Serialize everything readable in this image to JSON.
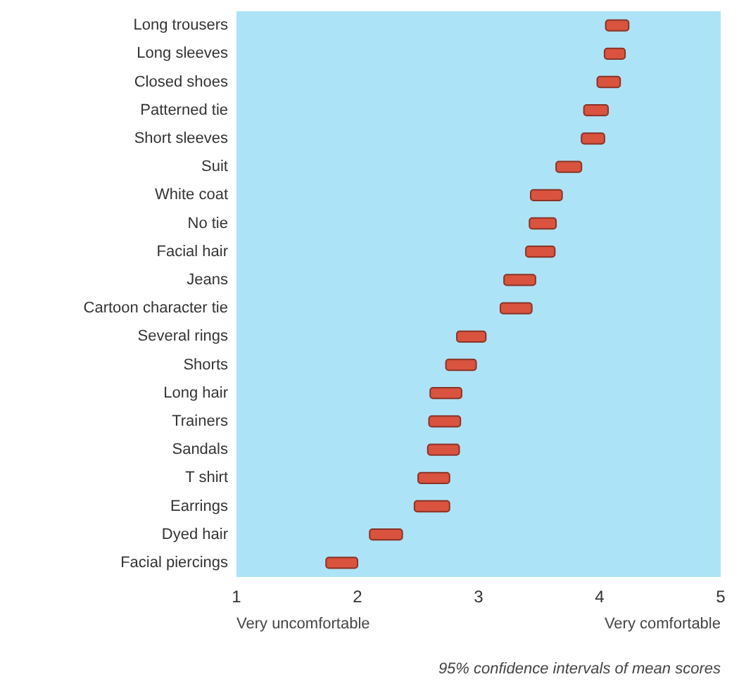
{
  "chart_data": {
    "type": "bar",
    "orientation": "horizontal",
    "categories": [
      "Long trousers",
      "Long sleeves",
      "Closed shoes",
      "Patterned tie",
      "Short sleeves",
      "Suit",
      "White coat",
      "No tie",
      "Facial hair",
      "Jeans",
      "Cartoon character tie",
      "Several rings",
      "Shorts",
      "Long hair",
      "Trainers",
      "Sandals",
      "T shirt",
      "Earrings",
      "Dyed hair",
      "Facial piercings"
    ],
    "base": [
      4.05,
      4.04,
      3.98,
      3.87,
      3.85,
      3.64,
      3.43,
      3.42,
      3.39,
      3.21,
      3.18,
      2.82,
      2.73,
      2.6,
      2.59,
      2.58,
      2.5,
      2.47,
      2.1,
      1.74
    ],
    "values": [
      0.19,
      0.17,
      0.19,
      0.2,
      0.19,
      0.21,
      0.26,
      0.22,
      0.24,
      0.26,
      0.26,
      0.24,
      0.25,
      0.26,
      0.26,
      0.26,
      0.26,
      0.29,
      0.27,
      0.26
    ],
    "color": "#d9533f",
    "xlim": [
      1,
      5
    ],
    "xticks": [
      1,
      2,
      3,
      4,
      5
    ],
    "grid": false,
    "annotations": [
      "Very uncomfortable",
      "Very comfortable",
      "95% confidence intervals of mean scores"
    ]
  }
}
